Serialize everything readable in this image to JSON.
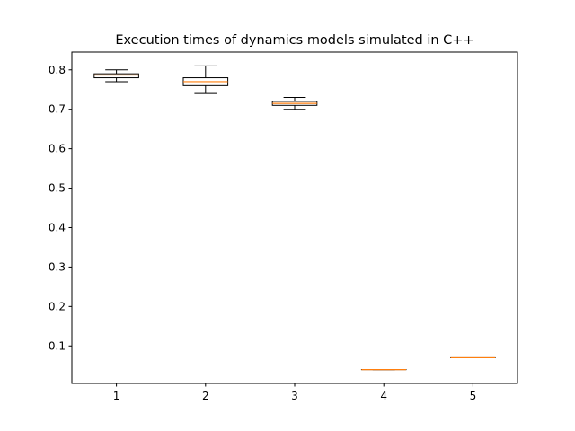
{
  "chart_data": {
    "type": "box",
    "title": "Execution times of dynamics models simulated in C++",
    "xlabel": "",
    "ylabel": "",
    "categories": [
      "1",
      "2",
      "3",
      "4",
      "5"
    ],
    "ylim": [
      0.005,
      0.845
    ],
    "yticks": [
      0.1,
      0.2,
      0.3,
      0.4,
      0.5,
      0.6,
      0.7,
      0.8
    ],
    "ytick_labels": [
      "0.1",
      "0.2",
      "0.3",
      "0.4",
      "0.5",
      "0.6",
      "0.7",
      "0.8"
    ],
    "grid": false,
    "boxes": [
      {
        "category": "1",
        "whisker_low": 0.77,
        "q1": 0.78,
        "median": 0.787,
        "q3": 0.79,
        "whisker_high": 0.8
      },
      {
        "category": "2",
        "whisker_low": 0.74,
        "q1": 0.76,
        "median": 0.77,
        "q3": 0.78,
        "whisker_high": 0.81
      },
      {
        "category": "3",
        "whisker_low": 0.7,
        "q1": 0.71,
        "median": 0.715,
        "q3": 0.72,
        "whisker_high": 0.73
      },
      {
        "category": "4",
        "whisker_low": 0.04,
        "q1": 0.04,
        "median": 0.04,
        "q3": 0.04,
        "whisker_high": 0.04
      },
      {
        "category": "5",
        "whisker_low": 0.07,
        "q1": 0.07,
        "median": 0.07,
        "q3": 0.07,
        "whisker_high": 0.07
      }
    ],
    "colors": {
      "box": "#000000",
      "median": "#ff7f0e"
    }
  }
}
